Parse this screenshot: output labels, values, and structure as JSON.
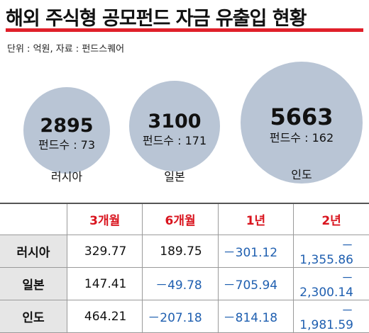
{
  "title": "해외 주식형 공모펀드 자금 유출입 현황",
  "source_note": "단위 : 억원, 자료 : 펀드스퀘어",
  "colors": {
    "accent_red": "#e0202a",
    "bubble_fill": "#b9c5d5",
    "negative_blue": "#1f5fb0",
    "header_red": "#d9141e"
  },
  "chart_data": [
    {
      "type": "bubble",
      "categories": [
        "러시아",
        "일본",
        "인도"
      ],
      "values": [
        2895,
        3100,
        5663
      ],
      "fund_count_label": "펀드수 :",
      "fund_counts": [
        73,
        171,
        162
      ]
    },
    {
      "type": "table",
      "columns": [
        "3개월",
        "6개월",
        "1년",
        "2년"
      ],
      "rows": [
        {
          "label": "러시아",
          "values": [
            "329.77",
            "189.75",
            "－301.12",
            "－1,355.86"
          ]
        },
        {
          "label": "일본",
          "values": [
            "147.41",
            "－49.78",
            "－705.94",
            "－2,300.14"
          ]
        },
        {
          "label": "인도",
          "values": [
            "464.21",
            "－207.18",
            "－814.18",
            "－1,981.59"
          ]
        }
      ]
    }
  ]
}
